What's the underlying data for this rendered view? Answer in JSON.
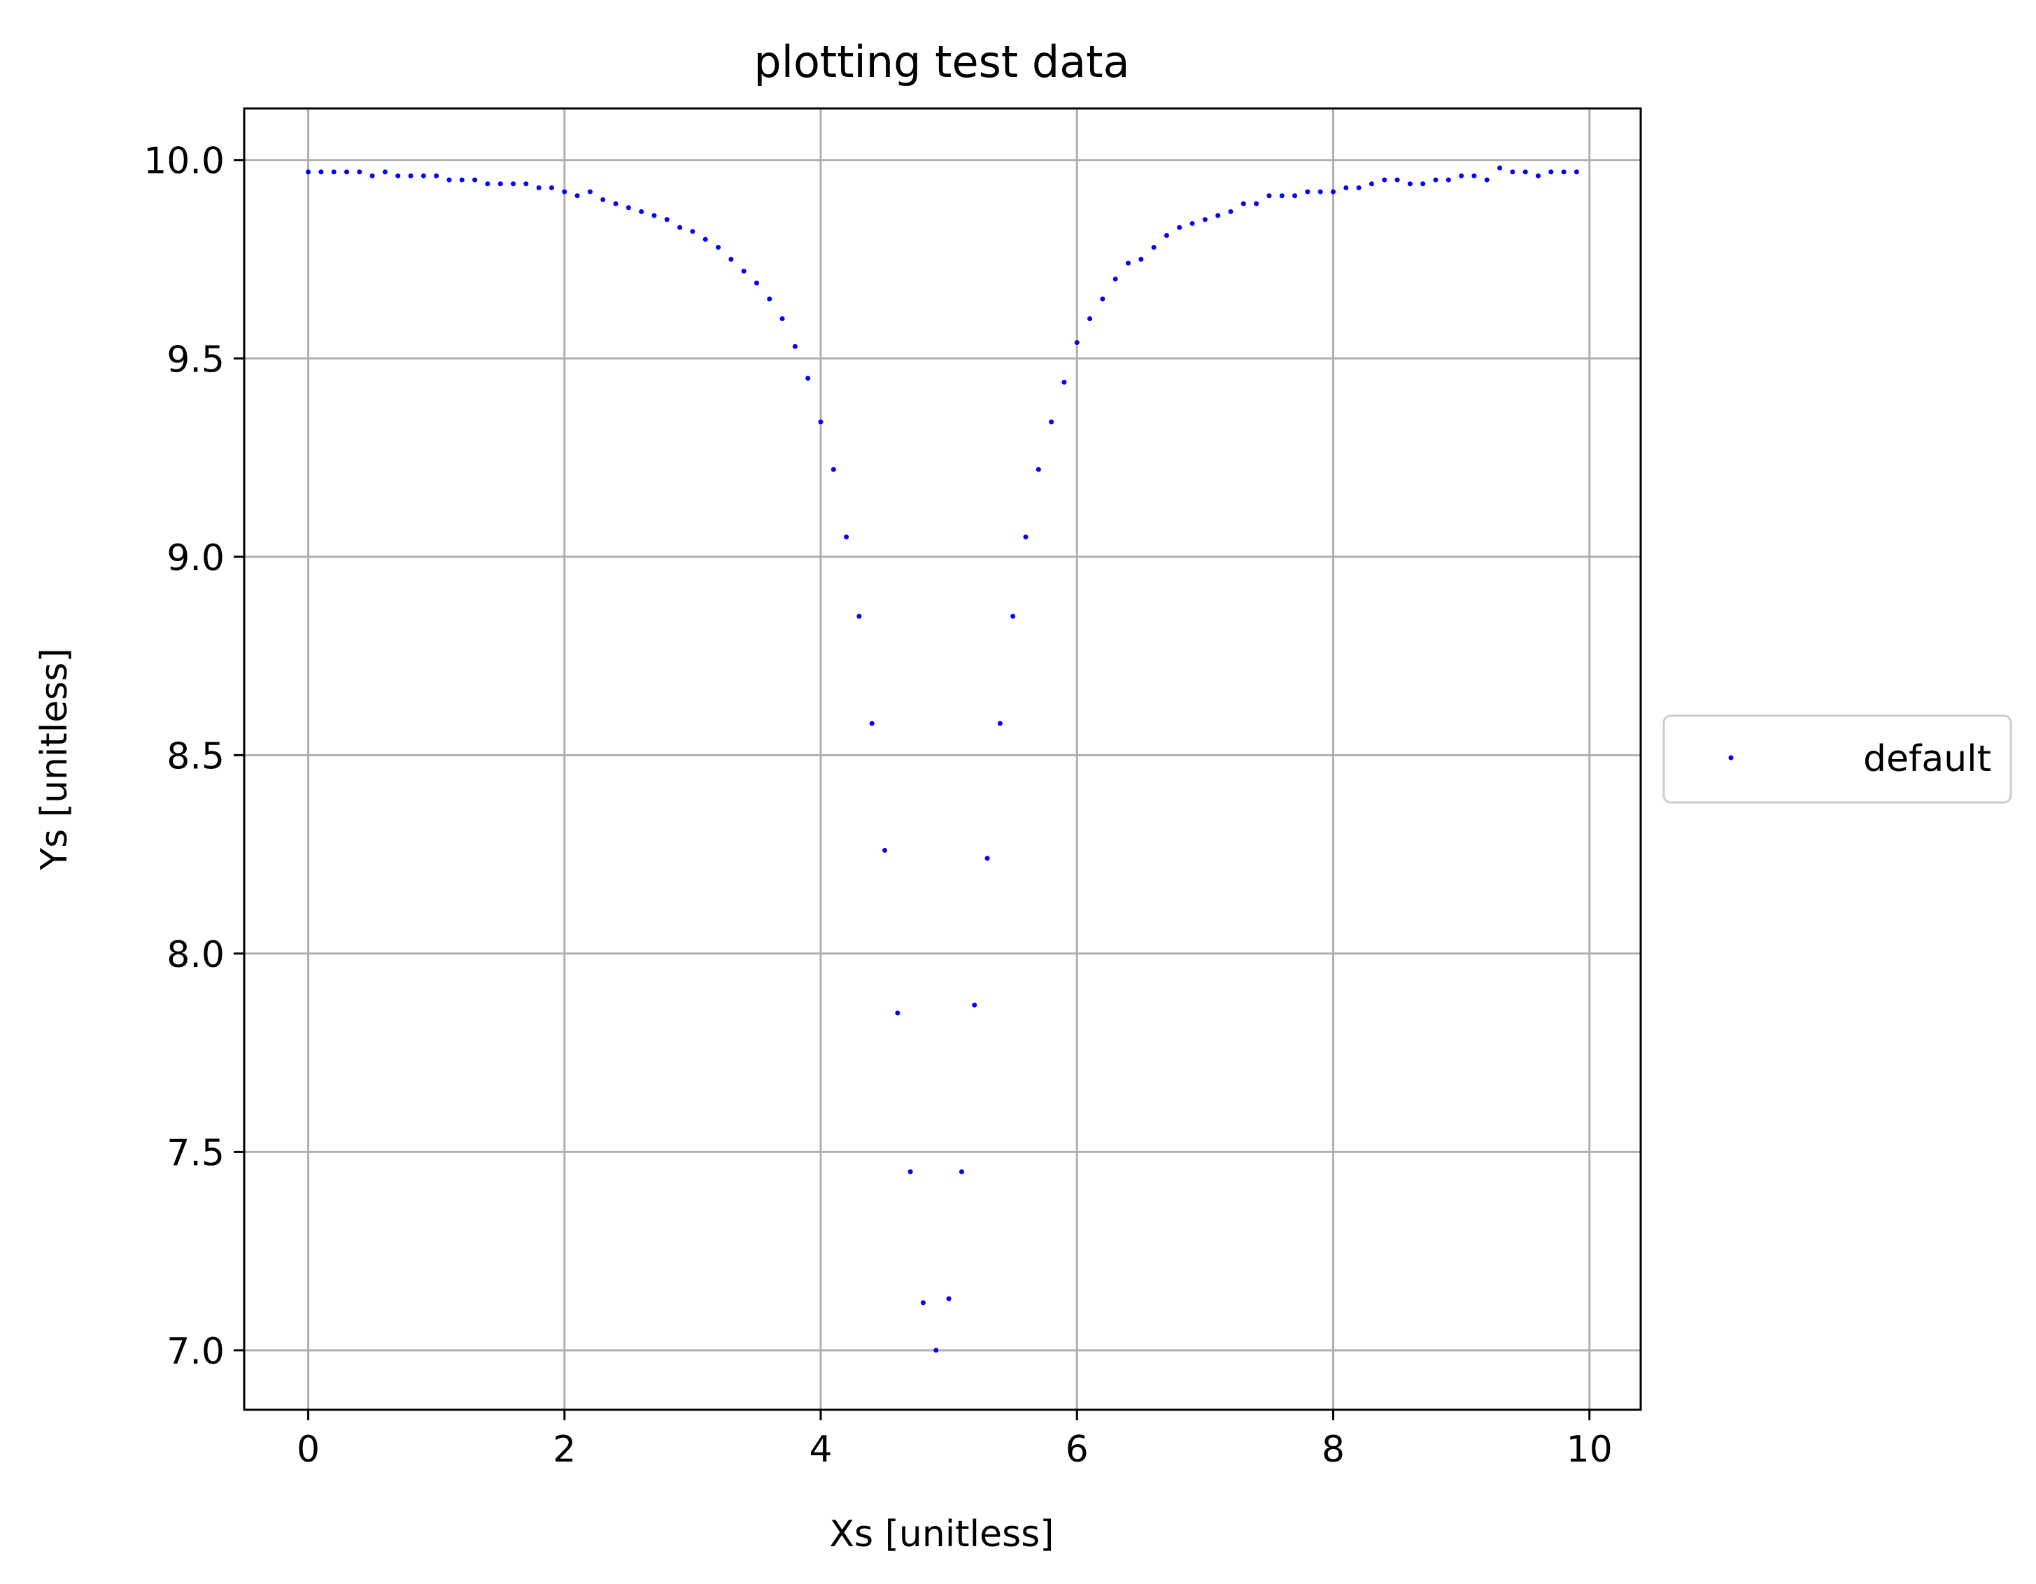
{
  "chart_data": {
    "type": "scatter",
    "title": "plotting test data",
    "xlabel": "Xs [unitless]",
    "ylabel": "Ys [unitless]",
    "xlim": [
      -0.5,
      10.4
    ],
    "ylim": [
      6.85,
      10.13
    ],
    "xticks": [
      0,
      2,
      4,
      6,
      8,
      10
    ],
    "xtick_labels": [
      "0",
      "2",
      "4",
      "6",
      "8",
      "10"
    ],
    "yticks": [
      7.0,
      7.5,
      8.0,
      8.5,
      9.0,
      9.5,
      10.0
    ],
    "ytick_labels": [
      "7.0",
      "7.5",
      "8.0",
      "8.5",
      "9.0",
      "9.5",
      "10.0"
    ],
    "grid": true,
    "legend_position": "center-right outside",
    "series": [
      {
        "name": "default",
        "color": "#0000ff",
        "marker": "point",
        "x": [
          0.0,
          0.1,
          0.2,
          0.3,
          0.4,
          0.5,
          0.6,
          0.7,
          0.8,
          0.9,
          1.0,
          1.1,
          1.2,
          1.3,
          1.4,
          1.5,
          1.6,
          1.7,
          1.8,
          1.9,
          2.0,
          2.1,
          2.2,
          2.3,
          2.4,
          2.5,
          2.6,
          2.7,
          2.8,
          2.9,
          3.0,
          3.1,
          3.2,
          3.3,
          3.4,
          3.5,
          3.6,
          3.7,
          3.8,
          3.9,
          4.0,
          4.1,
          4.2,
          4.3,
          4.4,
          4.5,
          4.6,
          4.7,
          4.8,
          4.9,
          5.0,
          5.1,
          5.2,
          5.3,
          5.4,
          5.5,
          5.6,
          5.7,
          5.8,
          5.9,
          6.0,
          6.1,
          6.2,
          6.3,
          6.4,
          6.5,
          6.6,
          6.7,
          6.8,
          6.9,
          7.0,
          7.1,
          7.2,
          7.3,
          7.4,
          7.5,
          7.6,
          7.7,
          7.8,
          7.9,
          8.0,
          8.1,
          8.2,
          8.3,
          8.4,
          8.5,
          8.6,
          8.7,
          8.8,
          8.9,
          9.0,
          9.1,
          9.2,
          9.3,
          9.4,
          9.5,
          9.6,
          9.7,
          9.8,
          9.9
        ],
        "y": [
          9.97,
          9.97,
          9.97,
          9.97,
          9.97,
          9.96,
          9.97,
          9.96,
          9.96,
          9.96,
          9.96,
          9.95,
          9.95,
          9.95,
          9.94,
          9.94,
          9.94,
          9.94,
          9.93,
          9.93,
          9.92,
          9.91,
          9.92,
          9.9,
          9.89,
          9.88,
          9.87,
          9.86,
          9.85,
          9.83,
          9.82,
          9.8,
          9.78,
          9.75,
          9.72,
          9.69,
          9.65,
          9.6,
          9.53,
          9.45,
          9.34,
          9.22,
          9.05,
          8.85,
          8.58,
          8.26,
          7.85,
          7.45,
          7.12,
          7.0,
          7.13,
          7.45,
          7.87,
          8.24,
          8.58,
          8.85,
          9.05,
          9.22,
          9.34,
          9.44,
          9.54,
          9.6,
          9.65,
          9.7,
          9.74,
          9.75,
          9.78,
          9.81,
          9.83,
          9.84,
          9.85,
          9.86,
          9.87,
          9.89,
          9.89,
          9.91,
          9.91,
          9.91,
          9.92,
          9.92,
          9.92,
          9.93,
          9.93,
          9.94,
          9.95,
          9.95,
          9.94,
          9.94,
          9.95,
          9.95,
          9.96,
          9.96,
          9.95,
          9.98,
          9.97,
          9.97,
          9.96,
          9.97,
          9.97,
          9.97
        ]
      }
    ]
  }
}
